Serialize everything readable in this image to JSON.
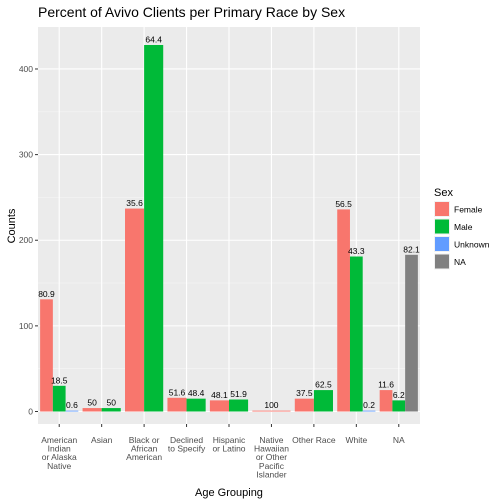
{
  "chart_data": {
    "type": "bar",
    "title": "Percent of Avivo Clients per Primary Race by Sex",
    "xlabel": "Age Grouping",
    "ylabel": "Counts",
    "ylim": [
      0,
      445
    ],
    "yticks": [
      0,
      100,
      200,
      300,
      400
    ],
    "grid": true,
    "legend_position": "right",
    "legend_title": "Sex",
    "categories": [
      "American\nIndian\nor Alaska\nNative",
      "Asian",
      "Black or\nAfrican\nAmerican",
      "Declined\nto Specify",
      "Hispanic\nor Latino",
      "Native\nHawaiian\nor Other\nPacific\nIslander",
      "Other Race",
      "White",
      "NA"
    ],
    "series": [
      {
        "name": "Female",
        "color": "#F8766D",
        "values": [
          131,
          4,
          237,
          16,
          13,
          1,
          15,
          236,
          25
        ],
        "labels": [
          "80.9",
          "50",
          "35.6",
          "51.6",
          "48.1",
          "100",
          "37.5",
          "56.5",
          "11.6"
        ]
      },
      {
        "name": "Male",
        "color": "#00BA38",
        "values": [
          30,
          4,
          428,
          15,
          14,
          0,
          25,
          181,
          13
        ],
        "labels": [
          "18.5",
          "50",
          "64.4",
          "48.4",
          "51.9",
          "",
          "62.5",
          "43.3",
          "6.2"
        ]
      },
      {
        "name": "Unknown",
        "color": "#619CFF",
        "values": [
          1,
          0,
          0,
          0,
          0,
          0,
          0,
          1,
          0
        ],
        "labels": [
          "0.6",
          "",
          "",
          "",
          "",
          "",
          "",
          "0.2",
          ""
        ]
      },
      {
        "name": "NA",
        "color": "#808080",
        "values": [
          0,
          0,
          0,
          0,
          0,
          0,
          0,
          0,
          183
        ],
        "labels": [
          "",
          "",
          "",
          "",
          "",
          "",
          "",
          "",
          "82.1"
        ]
      }
    ],
    "bar_groups": [
      [
        "Female",
        "Male",
        "Unknown"
      ],
      [
        "Female",
        "Male"
      ],
      [
        "Female",
        "Male"
      ],
      [
        "Female",
        "Male"
      ],
      [
        "Female",
        "Male"
      ],
      [
        "Female"
      ],
      [
        "Female",
        "Male"
      ],
      [
        "Female",
        "Male",
        "Unknown"
      ],
      [
        "Female",
        "Male",
        "NA"
      ]
    ]
  }
}
